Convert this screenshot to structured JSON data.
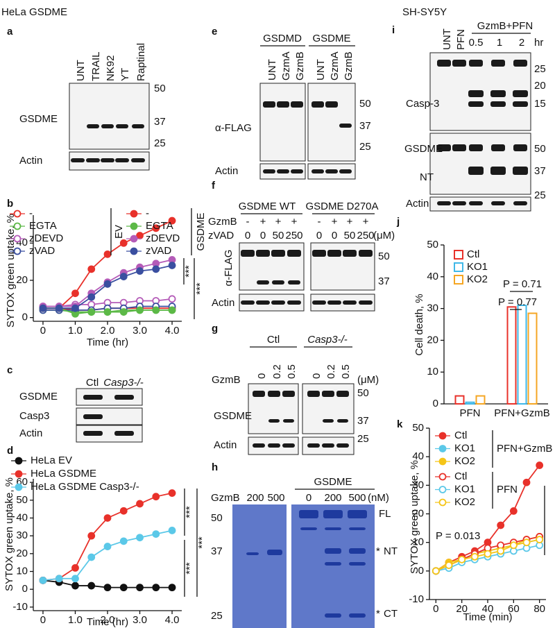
{
  "header": {
    "left": "HeLa GSDME",
    "right": "SH-SY5Y"
  },
  "blots": {
    "a": {
      "letter": "a",
      "lanes": [
        "UNT",
        "TRAIL",
        "NK92",
        "YT",
        "Raptinal"
      ],
      "rows": [
        "GSDME",
        "Actin"
      ],
      "markers": [
        50,
        37,
        25
      ]
    },
    "c": {
      "letter": "c",
      "lanes": [
        "Ctl",
        "Casp3-/-"
      ],
      "rows": [
        "GSDME",
        "Casp3",
        "Actin"
      ]
    },
    "e": {
      "letter": "e",
      "groups": [
        "GSDMD",
        "GSDME"
      ],
      "lanes": [
        "UNT",
        "GzmA",
        "GzmB",
        "UNT",
        "GzmA",
        "GzmB"
      ],
      "rows": [
        "α-FLAG",
        "Actin"
      ],
      "markers": [
        50,
        37,
        25
      ]
    },
    "f": {
      "letter": "f",
      "groups": [
        "GSDME WT",
        "GSDME D270A"
      ],
      "row_labels": [
        "GzmB",
        "zVAD"
      ],
      "gzmb": [
        "-",
        "+",
        "+",
        "+",
        "-",
        "+",
        "+",
        "+"
      ],
      "zvad": [
        "0",
        "0",
        "50",
        "250",
        "0",
        "0",
        "50",
        "250"
      ],
      "unit": "(μM)",
      "rows": [
        "α-FLAG",
        "Actin"
      ],
      "markers": [
        50,
        37
      ]
    },
    "g": {
      "letter": "g",
      "groups": [
        "Ctl",
        "Casp3-/-"
      ],
      "treatment": "GzmB",
      "lanes": [
        "0",
        "0.2",
        "0.5",
        "0",
        "0.2",
        "0.5"
      ],
      "unit": "(μM)",
      "rows": [
        "GSDME",
        "Actin"
      ],
      "markers": [
        50,
        37,
        25
      ]
    },
    "h": {
      "letter": "h",
      "treatment": "GzmB",
      "lanes_left": [
        "200",
        "500"
      ],
      "group": "GSDME",
      "lanes_right": [
        "0",
        "200",
        "500"
      ],
      "unit": "(nM)",
      "markers": [
        50,
        37,
        25
      ],
      "bands": [
        "FL",
        "NT",
        "CT"
      ],
      "stars": [
        "*",
        "*"
      ]
    },
    "i": {
      "letter": "i",
      "lanes": [
        "UNT",
        "PFN"
      ],
      "group": "GzmB+PFN",
      "times": [
        "0.5",
        "1",
        "2"
      ],
      "unit": "hr",
      "rows": [
        "Casp-3",
        "GSDME",
        "NT",
        "Actin"
      ],
      "markers": [
        25,
        20,
        15,
        50,
        37,
        25
      ]
    }
  },
  "chart_data": [
    {
      "type": "line",
      "letter": "b",
      "x": [
        0,
        0.5,
        1,
        1.5,
        2,
        2.5,
        3,
        3.5,
        4
      ],
      "xlim": [
        -0.3,
        4.3
      ],
      "xticks": [
        0,
        {
          "value": 1,
          "label": "1.0"
        },
        {
          "value": 2,
          "label": "2.0"
        },
        {
          "value": 3,
          "label": "3.0"
        },
        {
          "value": 4,
          "label": "4.0"
        }
      ],
      "ylim": [
        -2,
        55
      ],
      "yticks": [
        0,
        20,
        40
      ],
      "xlabel": "Time (hr)",
      "ylabel": "SYTOX green uptake, %",
      "groups": [
        {
          "label": "EV",
          "marker": "open"
        },
        {
          "label": "GSDME",
          "marker": "filled"
        }
      ],
      "series": [
        {
          "name": "-",
          "color": "#e8312a",
          "marker": "open",
          "values": [
            5,
            5,
            4,
            4,
            5,
            5,
            5,
            5,
            5
          ]
        },
        {
          "name": "EGTA",
          "color": "#5cb947",
          "marker": "open",
          "values": [
            4,
            4,
            3,
            3,
            3,
            4,
            4,
            4,
            4
          ]
        },
        {
          "name": "zDEVD",
          "color": "#b45bb8",
          "marker": "open",
          "values": [
            6,
            6,
            7,
            7,
            8,
            8,
            9,
            9,
            10
          ]
        },
        {
          "name": "zVAD",
          "color": "#3a4fa0",
          "marker": "open",
          "values": [
            4,
            4,
            4,
            4,
            5,
            5,
            6,
            6,
            6
          ]
        },
        {
          "name": "-",
          "color": "#e8312a",
          "marker": "filled",
          "values": [
            5,
            5,
            13,
            26,
            34,
            40,
            44,
            48,
            52
          ]
        },
        {
          "name": "EGTA",
          "color": "#5cb947",
          "marker": "filled",
          "values": [
            5,
            5,
            2,
            3,
            3,
            3,
            4,
            4,
            4
          ]
        },
        {
          "name": "zDEVD",
          "color": "#b45bb8",
          "marker": "filled",
          "values": [
            6,
            6,
            6,
            13,
            19,
            24,
            27,
            29,
            31
          ]
        },
        {
          "name": "zVAD",
          "color": "#3a4fa0",
          "marker": "filled",
          "values": [
            5,
            5,
            5,
            11,
            18,
            22,
            25,
            26,
            28
          ]
        }
      ],
      "significance": [
        "***",
        "***"
      ]
    },
    {
      "type": "line",
      "letter": "d",
      "x": [
        0,
        0.5,
        1,
        1.5,
        2,
        2.5,
        3,
        3.5,
        4
      ],
      "xlim": [
        -0.3,
        4.3
      ],
      "xticks": [
        0,
        {
          "value": 1,
          "label": "1.0"
        },
        {
          "value": 2,
          "label": "2.0"
        },
        {
          "value": 3,
          "label": "3.0"
        },
        {
          "value": 4,
          "label": "4.0"
        }
      ],
      "ylim": [
        -12,
        62
      ],
      "yticks": [
        -10,
        0,
        10,
        20,
        30,
        40,
        50,
        60
      ],
      "xlabel": "Time (hr)",
      "ylabel": "SYTOX green uptake, %",
      "series": [
        {
          "name": "HeLa EV",
          "color": "#111111",
          "marker": "filled",
          "values": [
            5,
            4,
            2,
            2,
            1,
            1,
            1,
            1,
            1
          ]
        },
        {
          "name": "HeLa GSDME",
          "color": "#e8312a",
          "marker": "filled",
          "values": [
            5,
            6,
            12,
            30,
            40,
            44,
            48,
            52,
            54
          ]
        },
        {
          "name": "HeLa GSDME Casp3-/-",
          "color": "#5bc8e8",
          "marker": "filled",
          "values": [
            5,
            6,
            6,
            18,
            24,
            27,
            29,
            31,
            33
          ]
        }
      ],
      "significance": [
        "***",
        "***",
        "***"
      ]
    },
    {
      "type": "bar",
      "letter": "j",
      "categories": [
        "PFN",
        "PFN+GzmB"
      ],
      "ylim": [
        0,
        50
      ],
      "yticks": [
        0,
        10,
        20,
        30,
        40,
        50
      ],
      "ylabel": "Cell death, %",
      "series": [
        {
          "name": "Ctl",
          "color": "#e8312a",
          "values": [
            2.5,
            30.5
          ]
        },
        {
          "name": "KO1",
          "color": "#3fb8e8",
          "values": [
            0.5,
            31
          ]
        },
        {
          "name": "KO2",
          "color": "#f5a623",
          "values": [
            2.5,
            28.5
          ]
        }
      ],
      "annotations": [
        "P = 0.71",
        "P = 0.77"
      ]
    },
    {
      "type": "line",
      "letter": "k",
      "x": [
        0,
        10,
        20,
        30,
        40,
        50,
        60,
        70,
        80
      ],
      "xlim": [
        -5,
        85
      ],
      "xticks": [
        0,
        20,
        40,
        60,
        80
      ],
      "ylim": [
        -10,
        50
      ],
      "yticks": [
        -10,
        0,
        10,
        20,
        30,
        40,
        50
      ],
      "xlabel": "Time (min)",
      "ylabel": "SYTOX green uptake, %",
      "groups": [
        {
          "label": "PFN+GzmB",
          "marker": "filled"
        },
        {
          "label": "PFN",
          "marker": "open"
        }
      ],
      "series": [
        {
          "name": "Ctl",
          "color": "#e8312a",
          "marker": "filled",
          "values": [
            0,
            3,
            5,
            7,
            10,
            16,
            21,
            31,
            37
          ]
        },
        {
          "name": "KO1",
          "color": "#5bc8e8",
          "marker": "filled",
          "values": [
            0,
            2,
            4,
            6,
            7,
            8,
            9,
            10,
            11
          ]
        },
        {
          "name": "KO2",
          "color": "#f5c518",
          "marker": "filled",
          "values": [
            0,
            3,
            4,
            6,
            7,
            8,
            9,
            11,
            12
          ]
        },
        {
          "name": "Ctl",
          "color": "#e8312a",
          "marker": "open",
          "values": [
            0,
            2,
            4,
            6,
            8,
            9,
            10,
            11,
            12
          ]
        },
        {
          "name": "KO1",
          "color": "#5bc8e8",
          "marker": "open",
          "values": [
            0,
            1,
            3,
            4,
            5,
            6,
            7,
            8,
            9
          ]
        },
        {
          "name": "KO2",
          "color": "#f5c518",
          "marker": "open",
          "values": [
            0,
            2,
            4,
            5,
            6,
            7,
            9,
            10,
            11
          ]
        }
      ],
      "annotations": [
        "P = 0.013"
      ]
    }
  ]
}
